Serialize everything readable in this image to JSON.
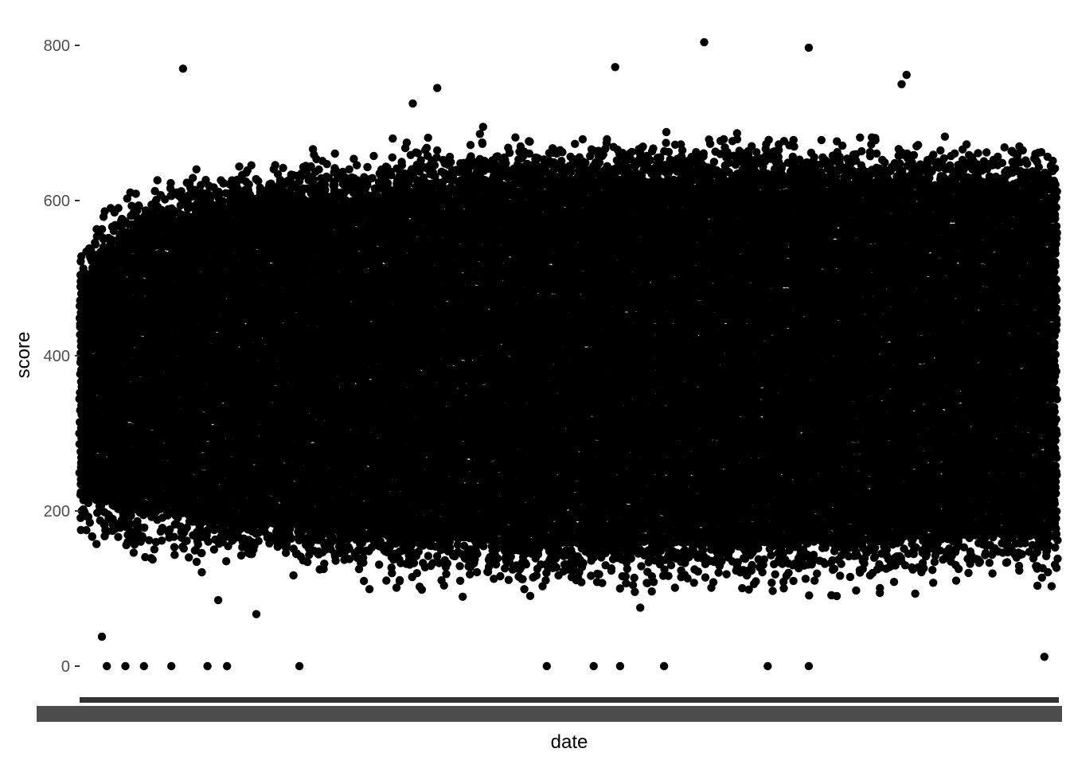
{
  "chart_data": {
    "type": "scatter",
    "title": "",
    "xlabel": "date",
    "ylabel": "score",
    "ylim": [
      0,
      810
    ],
    "y_ticks": [
      0,
      200,
      400,
      600,
      800
    ],
    "y_tick_labels": [
      "0",
      "200",
      "400",
      "600",
      "800"
    ],
    "x_tick_labels_note": "x tick labels are illegible (overplotted)",
    "grid": false,
    "legend": "none",
    "point_color": "#000000",
    "core_band_lower_upper": [
      [
        0.0,
        225,
        495
      ],
      [
        0.05,
        205,
        560
      ],
      [
        0.1,
        200,
        585
      ],
      [
        0.2,
        185,
        600
      ],
      [
        0.3,
        170,
        610
      ],
      [
        0.4,
        165,
        625
      ],
      [
        0.5,
        160,
        630
      ],
      [
        0.6,
        160,
        630
      ],
      [
        0.7,
        160,
        630
      ],
      [
        0.8,
        165,
        628
      ],
      [
        0.9,
        170,
        625
      ],
      [
        1.0,
        170,
        620
      ]
    ],
    "notable_points": [
      {
        "x": 0.105,
        "y": 770
      },
      {
        "x": 0.547,
        "y": 772
      },
      {
        "x": 0.638,
        "y": 804
      },
      {
        "x": 0.745,
        "y": 797
      },
      {
        "x": 0.84,
        "y": 750
      },
      {
        "x": 0.845,
        "y": 762
      },
      {
        "x": 0.365,
        "y": 745
      },
      {
        "x": 0.34,
        "y": 725
      },
      {
        "x": 0.027,
        "y": 0
      },
      {
        "x": 0.046,
        "y": 0
      },
      {
        "x": 0.065,
        "y": 0
      },
      {
        "x": 0.093,
        "y": 0
      },
      {
        "x": 0.13,
        "y": 0
      },
      {
        "x": 0.15,
        "y": 0
      },
      {
        "x": 0.224,
        "y": 0
      },
      {
        "x": 0.477,
        "y": 0
      },
      {
        "x": 0.525,
        "y": 0
      },
      {
        "x": 0.552,
        "y": 0
      },
      {
        "x": 0.597,
        "y": 0
      },
      {
        "x": 0.703,
        "y": 0
      },
      {
        "x": 0.745,
        "y": 0
      },
      {
        "x": 0.022,
        "y": 38
      },
      {
        "x": 0.141,
        "y": 85
      },
      {
        "x": 0.18,
        "y": 67
      },
      {
        "x": 0.986,
        "y": 12
      }
    ]
  }
}
